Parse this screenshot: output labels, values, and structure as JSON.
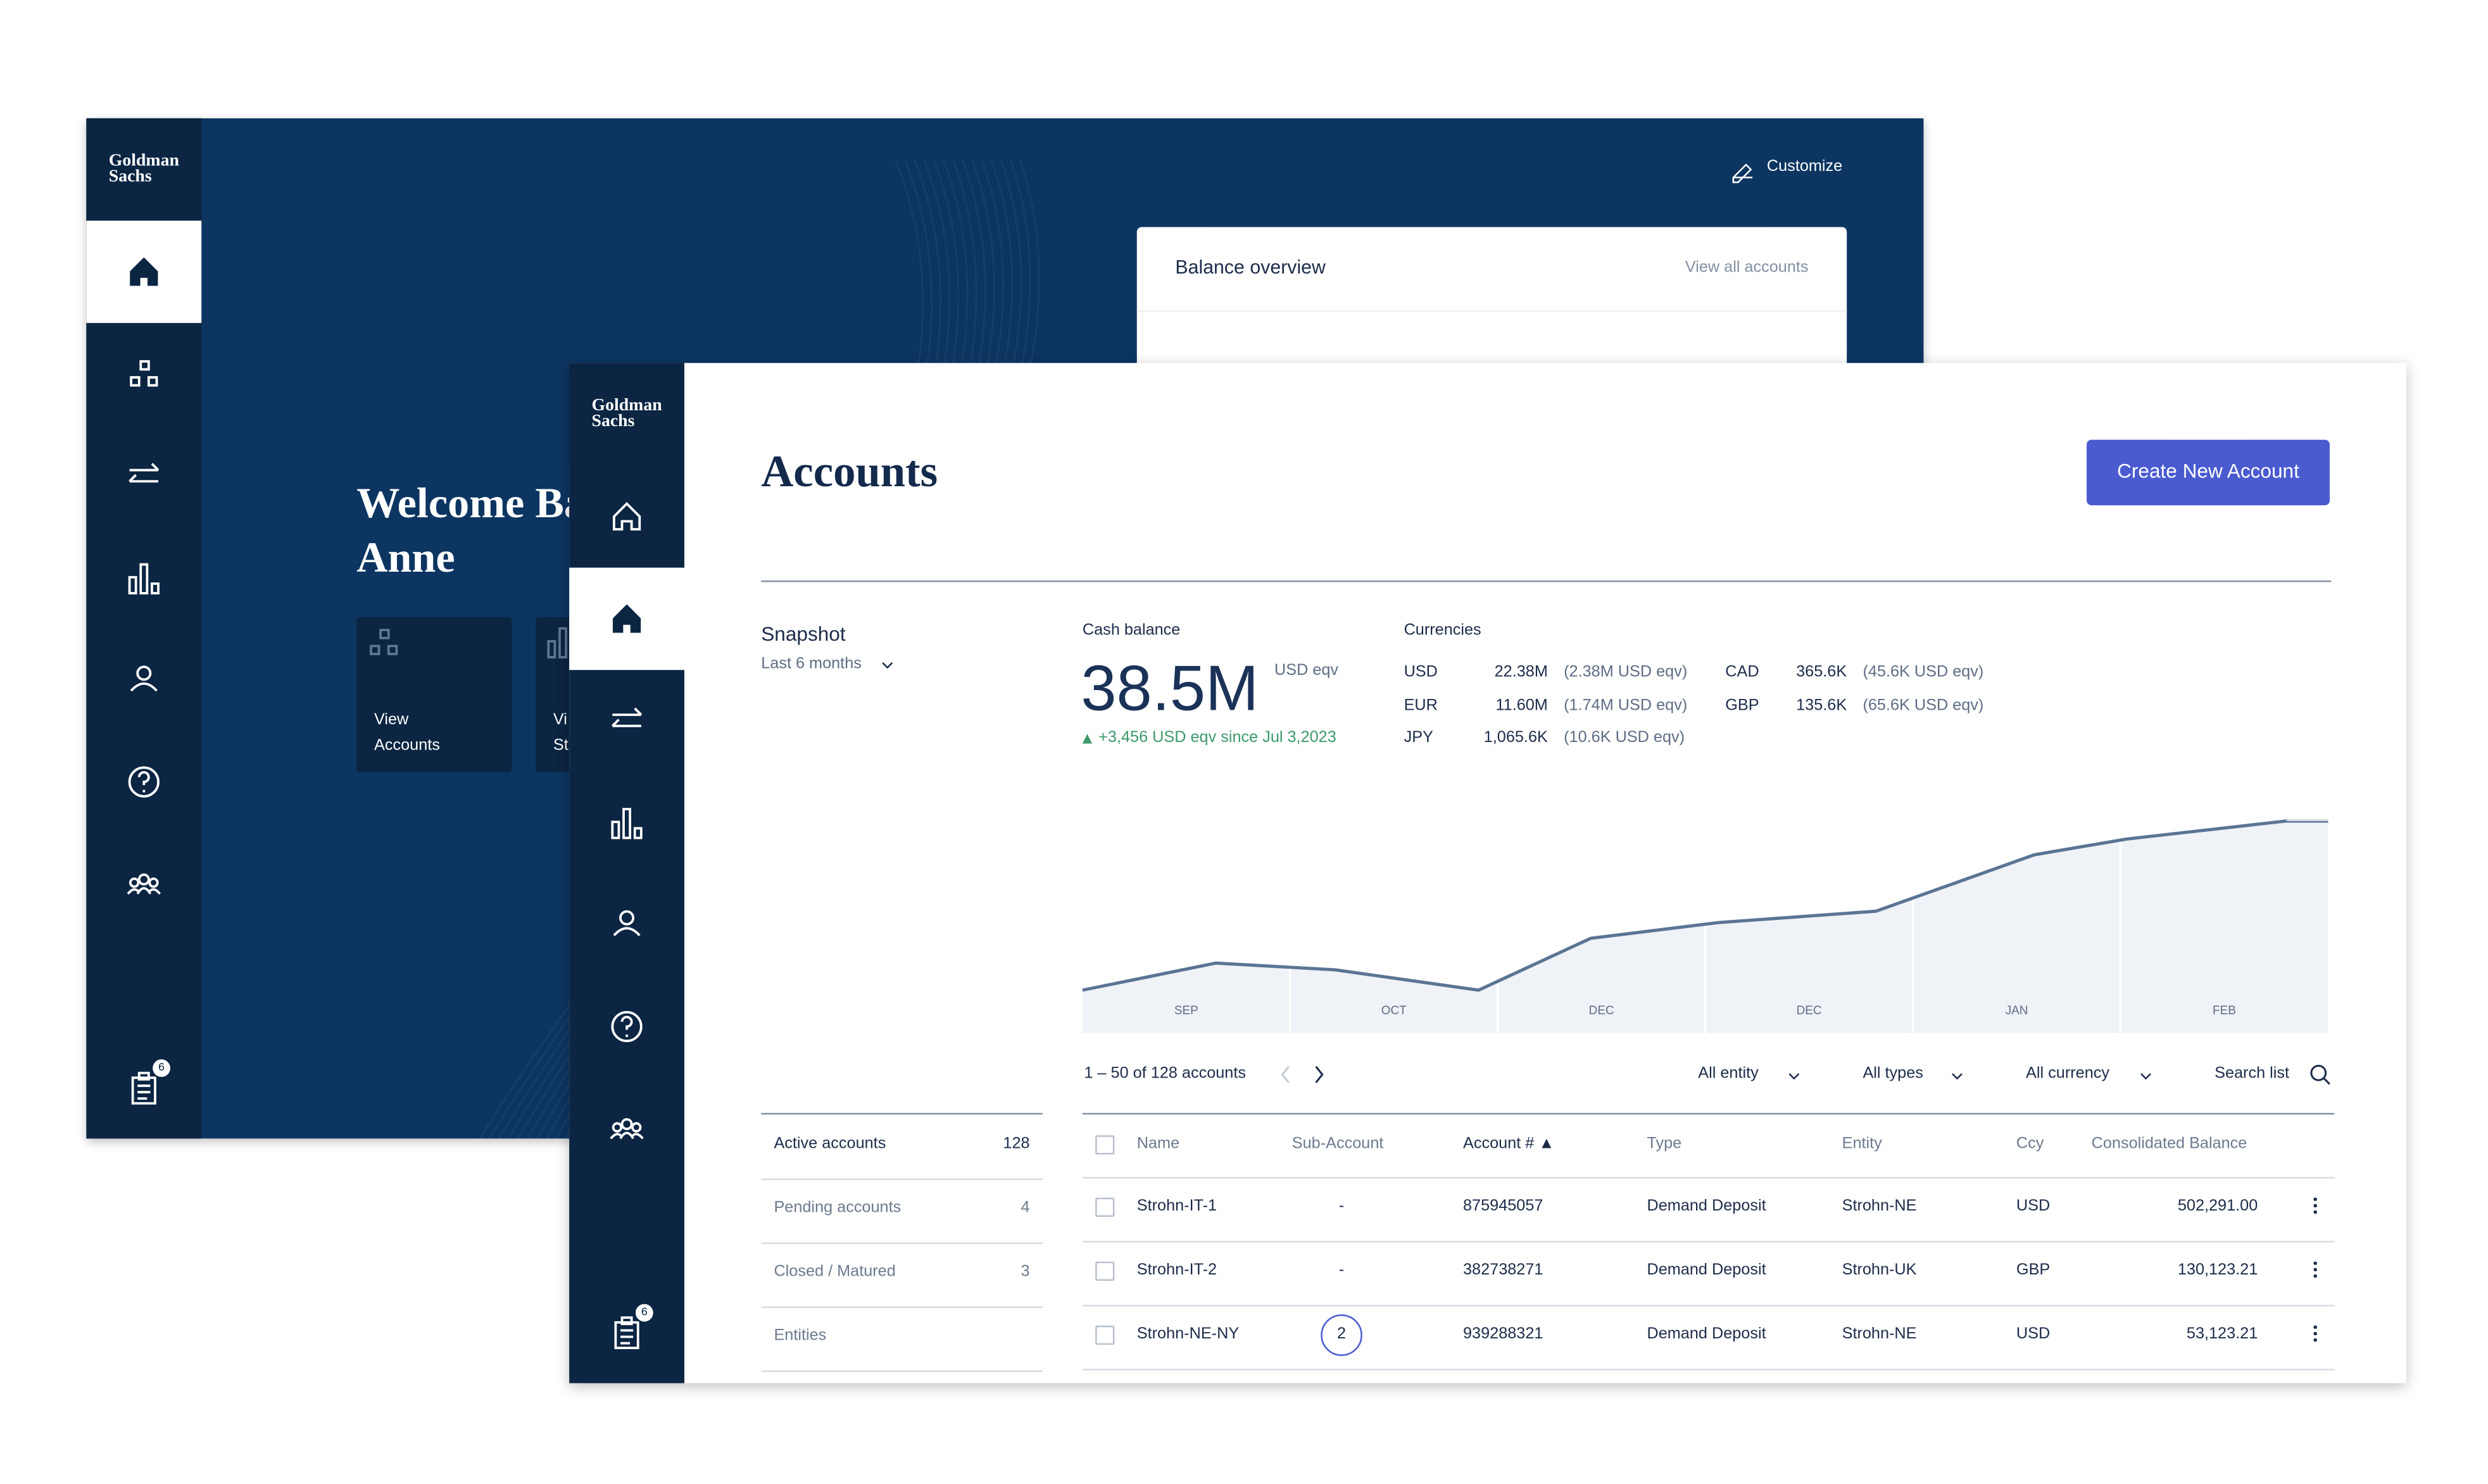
{
  "back_window": {
    "logo": [
      "Goldman",
      "Sachs"
    ],
    "customize": "Customize",
    "balance_overview": {
      "title": "Balance overview",
      "link": "View all accounts"
    },
    "welcome": [
      "Welcome Ba",
      "Anne"
    ],
    "tiles": [
      [
        "View",
        "Accounts"
      ],
      [
        "Vi",
        "St"
      ]
    ],
    "badge": 6
  },
  "front_window": {
    "logo": [
      "Goldman",
      "Sachs"
    ],
    "title": "Accounts",
    "button": "Create New Account",
    "badge": 6,
    "snapshot": {
      "title": "Snapshot",
      "period": "Last 6 months"
    },
    "cash": {
      "label": "Cash balance",
      "value": "38.5M",
      "unit": "USD eqv",
      "change": "+3,456 USD eqv since Jul 3,2023"
    },
    "currencies": {
      "label": "Currencies",
      "items": [
        {
          "code": "USD",
          "amount": "22.38M",
          "eqv": "(2.38M USD eqv)"
        },
        {
          "code": "EUR",
          "amount": "11.60M",
          "eqv": "(1.74M USD eqv)"
        },
        {
          "code": "JPY",
          "amount": "1,065.6K",
          "eqv": "(10.6K USD eqv)"
        },
        {
          "code": "CAD",
          "amount": "365.6K",
          "eqv": "(45.6K USD eqv)"
        },
        {
          "code": "GBP",
          "amount": "135.6K",
          "eqv": "(65.6K USD eqv)"
        }
      ]
    },
    "balance_chart": {
      "type": "line",
      "categories": [
        "SEP",
        "OCT",
        "DEC",
        "DEC",
        "JAN",
        "FEB"
      ],
      "x": [
        0,
        10.7,
        20.3,
        31.8,
        40.8,
        51.1,
        63.7,
        76.4,
        83.8,
        96.6,
        100
      ],
      "values": [
        19,
        31,
        28,
        19,
        42,
        49,
        54,
        79,
        86,
        94,
        94
      ],
      "xlim": [
        0,
        100
      ],
      "ylim": [
        0,
        100
      ],
      "color": "#5a7494"
    },
    "pagination": "1 – 50 of 128 accounts",
    "filters": [
      "All entity",
      "All types",
      "All currency"
    ],
    "search": "Search list",
    "side_list": [
      {
        "label": "Active accounts",
        "count": 128
      },
      {
        "label": "Pending accounts",
        "count": 4
      },
      {
        "label": "Closed / Matured",
        "count": 3
      },
      {
        "label": "Entities"
      }
    ],
    "table": {
      "columns": [
        "Name",
        "Sub-Account",
        "Account # ▲",
        "Type",
        "Entity",
        "Ccy",
        "Consolidated Balance"
      ],
      "rows": [
        [
          "Strohn-IT-1",
          "-",
          "875945057",
          "Demand Deposit",
          "Strohn-NE",
          "USD",
          "502,291.00"
        ],
        [
          "Strohn-IT-2",
          "-",
          "382738271",
          "Demand Deposit",
          "Strohn-UK",
          "GBP",
          "130,123.21"
        ],
        [
          "Strohn-NE-NY",
          "2",
          "939288321",
          "Demand Deposit",
          "Strohn-NE",
          "USD",
          "53,123.21"
        ]
      ]
    }
  }
}
